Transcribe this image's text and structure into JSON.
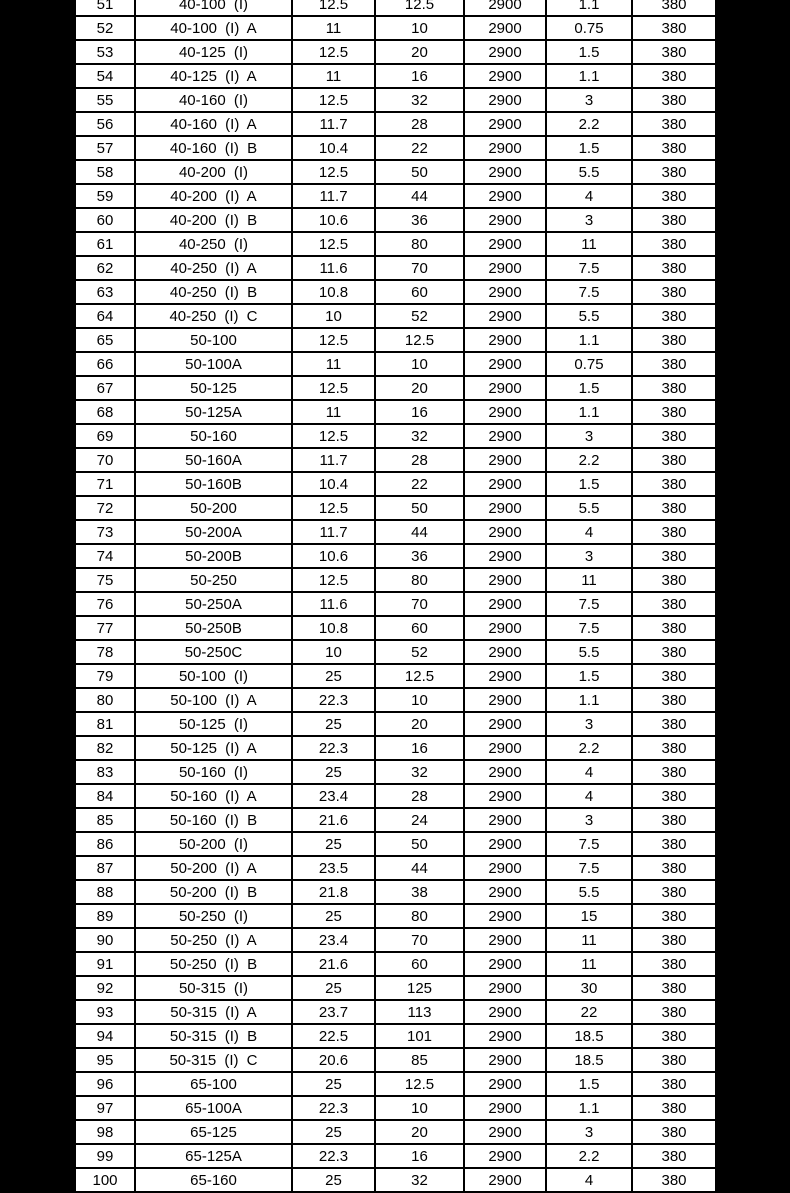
{
  "colors": {
    "page_background": "#000000",
    "cell_background": "#ffffff",
    "grid_border": "#000000",
    "text": "#000000"
  },
  "table": {
    "column_semantic_names": [
      "row-number",
      "model",
      "value-1",
      "value-2",
      "speed",
      "power",
      "voltage"
    ],
    "rows": [
      [
        "51",
        "40-100 (I)",
        "12.5",
        "12.5",
        "2900",
        "1.1",
        "380"
      ],
      [
        "52",
        "40-100 (I) A",
        "11",
        "10",
        "2900",
        "0.75",
        "380"
      ],
      [
        "53",
        "40-125 (I)",
        "12.5",
        "20",
        "2900",
        "1.5",
        "380"
      ],
      [
        "54",
        "40-125 (I) A",
        "11",
        "16",
        "2900",
        "1.1",
        "380"
      ],
      [
        "55",
        "40-160 (I)",
        "12.5",
        "32",
        "2900",
        "3",
        "380"
      ],
      [
        "56",
        "40-160 (I) A",
        "11.7",
        "28",
        "2900",
        "2.2",
        "380"
      ],
      [
        "57",
        "40-160 (I) B",
        "10.4",
        "22",
        "2900",
        "1.5",
        "380"
      ],
      [
        "58",
        "40-200 (I)",
        "12.5",
        "50",
        "2900",
        "5.5",
        "380"
      ],
      [
        "59",
        "40-200 (I) A",
        "11.7",
        "44",
        "2900",
        "4",
        "380"
      ],
      [
        "60",
        "40-200 (I) B",
        "10.6",
        "36",
        "2900",
        "3",
        "380"
      ],
      [
        "61",
        "40-250 (I)",
        "12.5",
        "80",
        "2900",
        "11",
        "380"
      ],
      [
        "62",
        "40-250 (I) A",
        "11.6",
        "70",
        "2900",
        "7.5",
        "380"
      ],
      [
        "63",
        "40-250 (I) B",
        "10.8",
        "60",
        "2900",
        "7.5",
        "380"
      ],
      [
        "64",
        "40-250 (I) C",
        "10",
        "52",
        "2900",
        "5.5",
        "380"
      ],
      [
        "65",
        "50-100",
        "12.5",
        "12.5",
        "2900",
        "1.1",
        "380"
      ],
      [
        "66",
        "50-100A",
        "11",
        "10",
        "2900",
        "0.75",
        "380"
      ],
      [
        "67",
        "50-125",
        "12.5",
        "20",
        "2900",
        "1.5",
        "380"
      ],
      [
        "68",
        "50-125A",
        "11",
        "16",
        "2900",
        "1.1",
        "380"
      ],
      [
        "69",
        "50-160",
        "12.5",
        "32",
        "2900",
        "3",
        "380"
      ],
      [
        "70",
        "50-160A",
        "11.7",
        "28",
        "2900",
        "2.2",
        "380"
      ],
      [
        "71",
        "50-160B",
        "10.4",
        "22",
        "2900",
        "1.5",
        "380"
      ],
      [
        "72",
        "50-200",
        "12.5",
        "50",
        "2900",
        "5.5",
        "380"
      ],
      [
        "73",
        "50-200A",
        "11.7",
        "44",
        "2900",
        "4",
        "380"
      ],
      [
        "74",
        "50-200B",
        "10.6",
        "36",
        "2900",
        "3",
        "380"
      ],
      [
        "75",
        "50-250",
        "12.5",
        "80",
        "2900",
        "11",
        "380"
      ],
      [
        "76",
        "50-250A",
        "11.6",
        "70",
        "2900",
        "7.5",
        "380"
      ],
      [
        "77",
        "50-250B",
        "10.8",
        "60",
        "2900",
        "7.5",
        "380"
      ],
      [
        "78",
        "50-250C",
        "10",
        "52",
        "2900",
        "5.5",
        "380"
      ],
      [
        "79",
        "50-100 (I)",
        "25",
        "12.5",
        "2900",
        "1.5",
        "380"
      ],
      [
        "80",
        "50-100 (I) A",
        "22.3",
        "10",
        "2900",
        "1.1",
        "380"
      ],
      [
        "81",
        "50-125 (I)",
        "25",
        "20",
        "2900",
        "3",
        "380"
      ],
      [
        "82",
        "50-125 (I) A",
        "22.3",
        "16",
        "2900",
        "2.2",
        "380"
      ],
      [
        "83",
        "50-160 (I)",
        "25",
        "32",
        "2900",
        "4",
        "380"
      ],
      [
        "84",
        "50-160 (I) A",
        "23.4",
        "28",
        "2900",
        "4",
        "380"
      ],
      [
        "85",
        "50-160 (I) B",
        "21.6",
        "24",
        "2900",
        "3",
        "380"
      ],
      [
        "86",
        "50-200 (I)",
        "25",
        "50",
        "2900",
        "7.5",
        "380"
      ],
      [
        "87",
        "50-200 (I) A",
        "23.5",
        "44",
        "2900",
        "7.5",
        "380"
      ],
      [
        "88",
        "50-200 (I) B",
        "21.8",
        "38",
        "2900",
        "5.5",
        "380"
      ],
      [
        "89",
        "50-250 (I)",
        "25",
        "80",
        "2900",
        "15",
        "380"
      ],
      [
        "90",
        "50-250 (I) A",
        "23.4",
        "70",
        "2900",
        "11",
        "380"
      ],
      [
        "91",
        "50-250 (I) B",
        "21.6",
        "60",
        "2900",
        "11",
        "380"
      ],
      [
        "92",
        "50-315 (I)",
        "25",
        "125",
        "2900",
        "30",
        "380"
      ],
      [
        "93",
        "50-315 (I) A",
        "23.7",
        "113",
        "2900",
        "22",
        "380"
      ],
      [
        "94",
        "50-315 (I) B",
        "22.5",
        "101",
        "2900",
        "18.5",
        "380"
      ],
      [
        "95",
        "50-315 (I) C",
        "20.6",
        "85",
        "2900",
        "18.5",
        "380"
      ],
      [
        "96",
        "65-100",
        "25",
        "12.5",
        "2900",
        "1.5",
        "380"
      ],
      [
        "97",
        "65-100A",
        "22.3",
        "10",
        "2900",
        "1.1",
        "380"
      ],
      [
        "98",
        "65-125",
        "25",
        "20",
        "2900",
        "3",
        "380"
      ],
      [
        "99",
        "65-125A",
        "22.3",
        "16",
        "2900",
        "2.2",
        "380"
      ],
      [
        "100",
        "65-160",
        "25",
        "32",
        "2900",
        "4",
        "380"
      ]
    ]
  }
}
